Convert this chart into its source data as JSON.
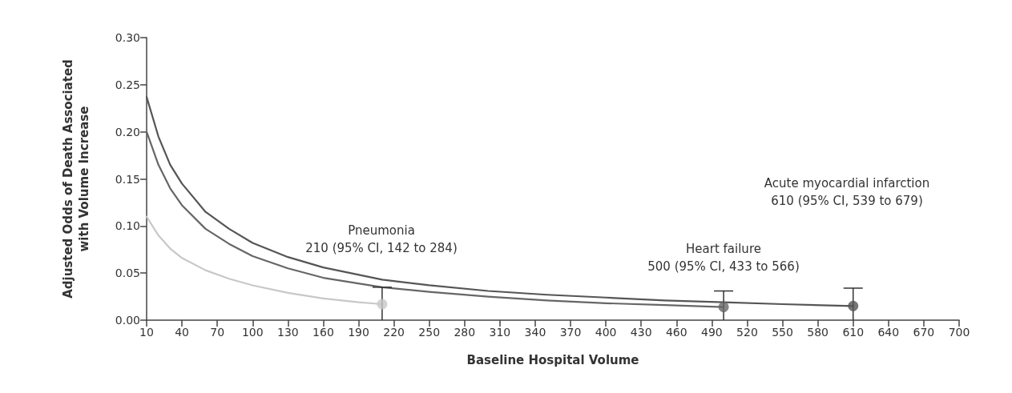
{
  "chart_data": {
    "type": "line",
    "xlabel": "Baseline Hospital Volume",
    "ylabel": "Adjusted Odds of Death Associated\nwith Volume Increase",
    "xlim": [
      10,
      700
    ],
    "xticks": [
      10,
      40,
      70,
      100,
      130,
      160,
      190,
      220,
      250,
      280,
      310,
      340,
      370,
      400,
      430,
      460,
      490,
      520,
      550,
      580,
      610,
      640,
      670,
      700
    ],
    "ylim": [
      0,
      0.3
    ],
    "yticks": [
      {
        "value": 0,
        "label": "0.00"
      },
      {
        "value": 0.05,
        "label": "0.05"
      },
      {
        "value": 0.1,
        "label": "0.10"
      },
      {
        "value": 0.15,
        "label": "0.15"
      },
      {
        "value": 0.2,
        "label": "0.20"
      },
      {
        "value": 0.25,
        "label": "0.25"
      },
      {
        "value": 0.3,
        "label": "0.30"
      }
    ],
    "grid": false,
    "series": [
      {
        "marker": "none",
        "color": "#555555",
        "x": [
          10,
          20,
          30,
          40,
          60,
          80,
          100,
          130,
          160,
          210,
          250,
          300,
          350,
          400,
          450,
          500,
          550,
          610
        ],
        "values": [
          0.237,
          0.195,
          0.165,
          0.145,
          0.115,
          0.097,
          0.082,
          0.067,
          0.056,
          0.043,
          0.037,
          0.031,
          0.027,
          0.024,
          0.021,
          0.019,
          0.017,
          0.015
        ]
      },
      {
        "marker": "none",
        "color": "#666666",
        "x": [
          10,
          20,
          30,
          40,
          60,
          80,
          100,
          130,
          160,
          210,
          250,
          300,
          350,
          400,
          450,
          500
        ],
        "values": [
          0.2,
          0.165,
          0.14,
          0.122,
          0.097,
          0.081,
          0.068,
          0.055,
          0.045,
          0.035,
          0.03,
          0.025,
          0.021,
          0.018,
          0.016,
          0.014
        ]
      },
      {
        "marker": "none",
        "color": "#c8c8c8",
        "x": [
          10,
          20,
          30,
          40,
          60,
          80,
          100,
          130,
          160,
          190,
          210
        ],
        "values": [
          0.11,
          0.09,
          0.076,
          0.066,
          0.053,
          0.044,
          0.037,
          0.029,
          0.023,
          0.019,
          0.017
        ]
      },
      {
        "type": "scatter",
        "marker": "circle",
        "x": [
          210,
          500,
          610
        ],
        "values": [
          0.017,
          0.014,
          0.015
        ],
        "colors": [
          "#c8c8c8",
          "#666666",
          "#555555"
        ],
        "errors": [
          [
            0,
            0.035
          ],
          [
            0,
            0.031
          ],
          [
            0,
            0.034
          ]
        ]
      }
    ],
    "annotations": [
      "Pneumonia\n210 (95% CI, 142 to 284)",
      "Heart failure\n500 (95% CI, 433 to 566)",
      "Acute myocardial infarction\n610 (95% CI, 539 to 679)"
    ]
  }
}
